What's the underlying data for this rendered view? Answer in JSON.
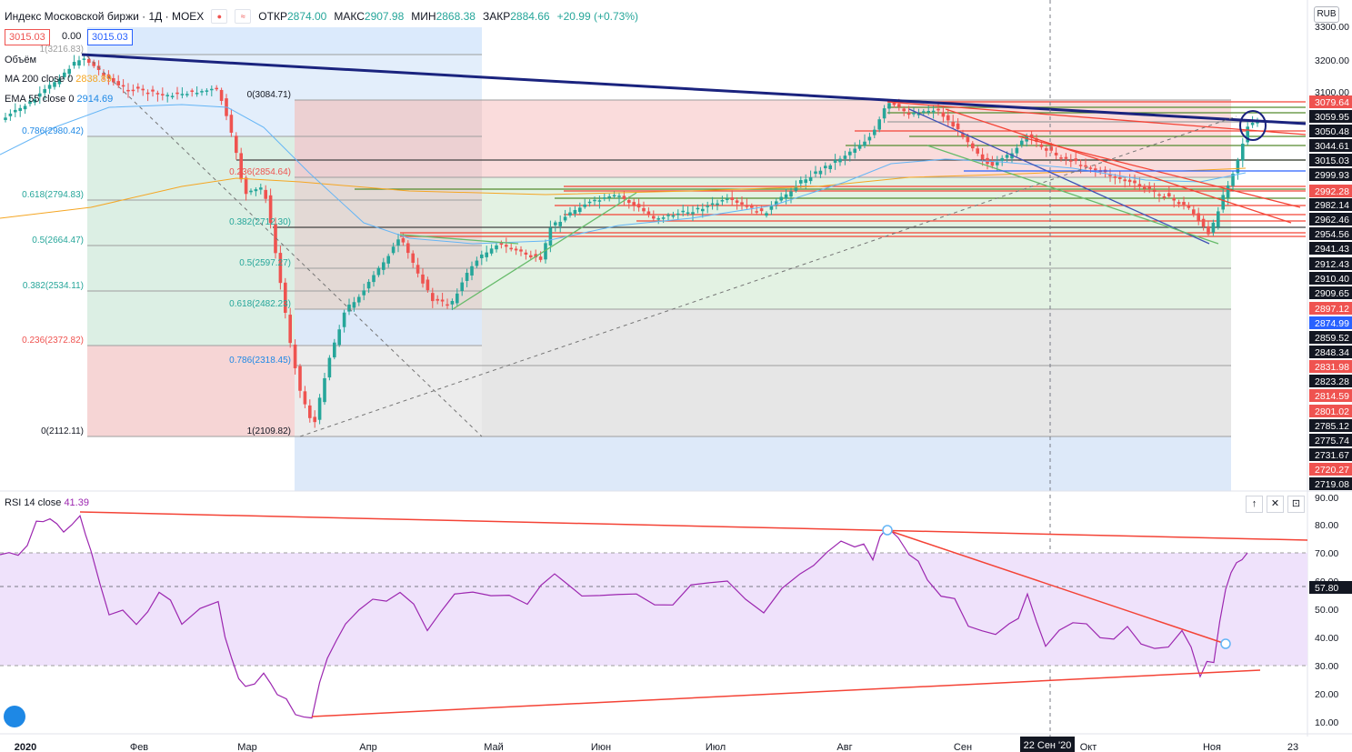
{
  "header": {
    "symbol": "Индекс Московской биржи · 1Д · MOEX",
    "open_label": "ОТКР",
    "open_value": "2874.00",
    "high_label": "МАКС",
    "high_value": "2907.98",
    "low_label": "МИН",
    "low_value": "2868.38",
    "close_label": "ЗАКР",
    "close_value": "2884.66",
    "change": "+20.99 (+0.73%)"
  },
  "price_badge_left": "3015.03",
  "spread_value": "0.00",
  "price_badge_right": "3015.03",
  "legend": {
    "volume": "Объём",
    "ma_label": "MA 200 close 0",
    "ma_value": "2838.89",
    "ema_label": "EMA 55 close 0",
    "ema_value": "2914.69"
  },
  "currency": "RUB",
  "rsi": {
    "label": "RSI 14 close",
    "value": "41.39",
    "crosshair_value": "57.80"
  },
  "rsi_buttons": [
    "↑",
    "✕",
    "⊡"
  ],
  "price_axis": [
    "3300.00",
    "3200.00",
    "3100.00",
    "3079.64",
    "3059.95",
    "3050.48",
    "3044.61",
    "3015.03",
    "2999.93",
    "2992.28",
    "2982.14",
    "2962.46",
    "2954.56",
    "2941.43",
    "2912.43",
    "2910.40",
    "2909.65",
    "2897.12",
    "2874.99",
    "2859.52",
    "2848.34",
    "2831.98",
    "2823.28",
    "2814.59",
    "2801.02",
    "2785.12",
    "2775.74",
    "2731.67",
    "2720.27",
    "2719.08"
  ],
  "rsi_axis": [
    "90.00",
    "80.00",
    "70.00",
    "60.00",
    "50.00",
    "40.00",
    "30.00",
    "20.00",
    "10.00"
  ],
  "time_axis": [
    "2020",
    "Фев",
    "Мар",
    "Апр",
    "Май",
    "Июн",
    "Июл",
    "Авг",
    "Сен",
    "Окт",
    "Ноя",
    "23"
  ],
  "crosshair_date": "22 Сен '20",
  "fib_labels_left": [
    "1(3216.83)",
    "0.786(2980.42)",
    "0.618(2794.83)",
    "0.5(2664.47)",
    "0.382(2534.11)",
    "0.236(2372.82)",
    "0(2112.11)"
  ],
  "fib_labels_mid": [
    "0(3084.71)",
    "0.236(2854.64)",
    "0.382(2712.30)",
    "0.5(2597.27)",
    "0.618(2482.23)",
    "0.786(2318.45)",
    "1(2109.82)"
  ],
  "colors": {
    "up": "#26a69a",
    "down": "#ef5350",
    "rsi_line": "#9c27b0",
    "rsi_band": "#e9d8fa",
    "trend_red": "#f44336",
    "trend_navy": "#1a237e",
    "ma200": "#f5a623",
    "ema55": "#64b5f6"
  }
}
